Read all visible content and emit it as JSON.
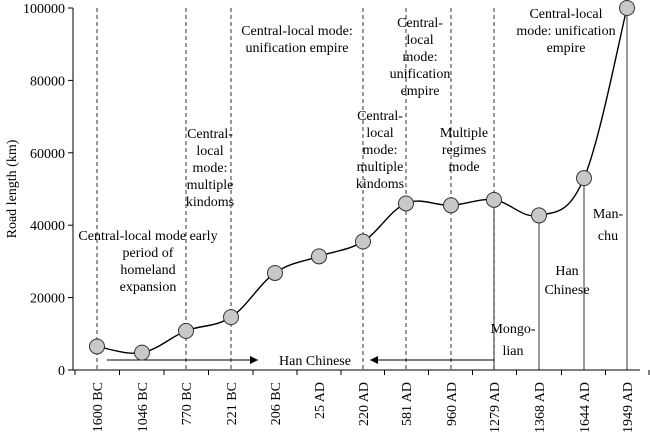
{
  "chart_data": {
    "type": "line",
    "ylabel": "Road length (km)",
    "ylim": [
      0,
      100000
    ],
    "yticks": [
      0,
      20000,
      40000,
      60000,
      80000,
      100000
    ],
    "ytick_labels": [
      "0",
      "20000",
      "40000",
      "60000",
      "80000",
      "100000"
    ],
    "categories": [
      "1600 BC",
      "1046 BC",
      "770 BC",
      "221 BC",
      "206 BC",
      "25 AD",
      "220 AD",
      "581 AD",
      "960 AD",
      "1279 AD",
      "1368 AD",
      "1644 AD",
      "1949 AD"
    ],
    "series": [
      {
        "values": [
          6500,
          4800,
          10800,
          14600,
          26800,
          31400,
          35500,
          46000,
          45500,
          47000,
          42700,
          53000,
          100000
        ]
      }
    ],
    "markers": "circle",
    "marker_color": "#c8c8c8",
    "dashed_dividers_at_categories": [
      "1600 BC",
      "770 BC",
      "221 BC",
      "220 AD",
      "581 AD",
      "960 AD",
      "1279 AD"
    ],
    "solid_dividers_at_categories": [
      "1279 AD",
      "1368 AD",
      "1644 AD",
      "1949 AD"
    ],
    "annotations": [
      {
        "lines": [
          "Central-local mode early",
          "period of",
          "homeland",
          "expansion"
        ]
      },
      {
        "lines": [
          "Central-",
          "local",
          "mode:",
          "multiple",
          "kindoms"
        ]
      },
      {
        "lines": [
          "Central-local mode:",
          "unification empire"
        ]
      },
      {
        "lines": [
          "Central-",
          "local",
          "mode:",
          "multiple",
          "kindoms"
        ]
      },
      {
        "lines": [
          "Central-",
          "local",
          "mode:",
          "unification",
          "empire"
        ]
      },
      {
        "lines": [
          "Multiple",
          "regimes",
          "mode"
        ]
      },
      {
        "lines": [
          "Central-local",
          "mode: unification",
          "empire"
        ]
      },
      {
        "lines": [
          "Mongo-",
          "lian"
        ]
      },
      {
        "lines": [
          "Han",
          "Chinese"
        ]
      },
      {
        "lines": [
          "Man-",
          "chu"
        ]
      }
    ],
    "arrow_label": "Han Chinese"
  }
}
